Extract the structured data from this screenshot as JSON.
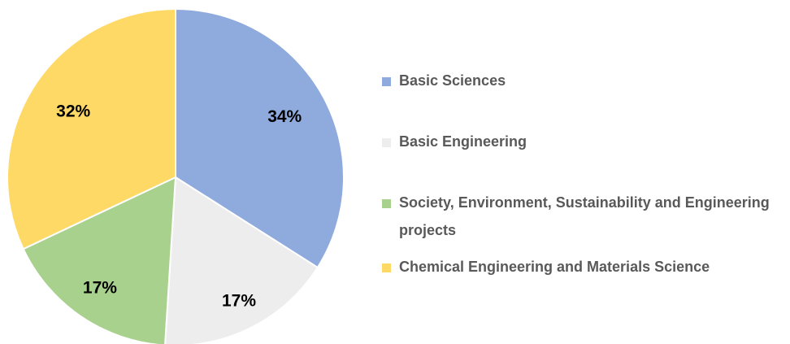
{
  "chart_data": {
    "type": "pie",
    "categories": [
      "Basic Sciences",
      "Basic Engineering",
      "Society, Environment, Sustainability and Engineering projects",
      "Chemical Engineering and Materials Science"
    ],
    "values": [
      34,
      17,
      17,
      32
    ],
    "value_labels": [
      "34%",
      "17%",
      "17%",
      "32%"
    ],
    "colors": [
      "#8faadc",
      "#ededed",
      "#a9d18e",
      "#ffd966"
    ],
    "legend": "right"
  }
}
